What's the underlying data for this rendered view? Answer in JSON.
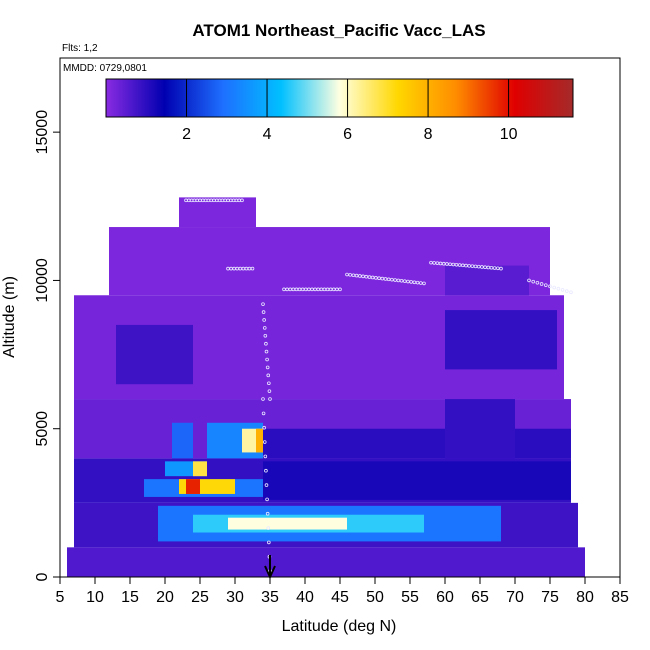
{
  "chart_data": {
    "type": "heatmap",
    "title": "ATOM1 Northeast_Pacific Vacc_LAS",
    "flights_label": "Flts: 1,2",
    "dates_label": "MMDD: 0729,0801",
    "xlabel": "Latitude (deg N)",
    "ylabel": "Altitude (m)",
    "xlim": [
      5,
      85
    ],
    "ylim": [
      0,
      17500
    ],
    "xticks": [
      "5",
      "10",
      "15",
      "20",
      "25",
      "30",
      "35",
      "40",
      "45",
      "50",
      "55",
      "60",
      "65",
      "70",
      "75",
      "80",
      "85"
    ],
    "yticks": [
      "0",
      "5000",
      "10000",
      "15000"
    ],
    "colorbar": {
      "range": [
        0,
        11.6
      ],
      "ticks": [
        "2",
        "4",
        "6",
        "8",
        "10"
      ],
      "placement": "top inside plot",
      "colors": [
        "#8a2be2",
        "#0000b0",
        "#1e6fff",
        "#00c0ff",
        "#ffffe0",
        "#ffd700",
        "#ff8c00",
        "#e00000",
        "#a52a2a"
      ]
    },
    "cells": [
      {
        "lat": [
          6,
          80
        ],
        "alt": [
          0,
          1000
        ],
        "v": 0.6
      },
      {
        "lat": [
          7,
          79
        ],
        "alt": [
          1000,
          2500
        ],
        "v": 0.8
      },
      {
        "lat": [
          19,
          68
        ],
        "alt": [
          1200,
          2400
        ],
        "v": 3.0
      },
      {
        "lat": [
          24,
          57
        ],
        "alt": [
          1500,
          2100
        ],
        "v": 4.6
      },
      {
        "lat": [
          29,
          46
        ],
        "alt": [
          1600,
          2000
        ],
        "v": 5.8
      },
      {
        "lat": [
          7,
          78
        ],
        "alt": [
          2500,
          4000
        ],
        "v": 0.9
      },
      {
        "lat": [
          17,
          34
        ],
        "alt": [
          2700,
          3300
        ],
        "v": 3.0
      },
      {
        "lat": [
          22,
          30
        ],
        "alt": [
          2800,
          3300
        ],
        "v": 7.2
      },
      {
        "lat": [
          23,
          25
        ],
        "alt": [
          2800,
          3300
        ],
        "v": 9.8
      },
      {
        "lat": [
          34,
          78
        ],
        "alt": [
          2600,
          3900
        ],
        "v": 1.2
      },
      {
        "lat": [
          20,
          26
        ],
        "alt": [
          3400,
          3900
        ],
        "v": 3.6
      },
      {
        "lat": [
          24,
          26
        ],
        "alt": [
          3400,
          3900
        ],
        "v": 6.8
      },
      {
        "lat": [
          7,
          78
        ],
        "alt": [
          4000,
          6000
        ],
        "v": 0.35
      },
      {
        "lat": [
          21,
          24
        ],
        "alt": [
          4000,
          5200
        ],
        "v": 2.8
      },
      {
        "lat": [
          26,
          34
        ],
        "alt": [
          4000,
          5200
        ],
        "v": 3.3
      },
      {
        "lat": [
          31,
          34
        ],
        "alt": [
          4200,
          5000
        ],
        "v": 6.2
      },
      {
        "lat": [
          33,
          34
        ],
        "alt": [
          4200,
          5000
        ],
        "v": 8.0
      },
      {
        "lat": [
          34,
          78
        ],
        "alt": [
          4000,
          5000
        ],
        "v": 1.0
      },
      {
        "lat": [
          60,
          70
        ],
        "alt": [
          4000,
          6000
        ],
        "v": 0.9
      },
      {
        "lat": [
          7,
          77
        ],
        "alt": [
          6000,
          9500
        ],
        "v": 0.2
      },
      {
        "lat": [
          13,
          24
        ],
        "alt": [
          6500,
          8500
        ],
        "v": 0.8
      },
      {
        "lat": [
          60,
          76
        ],
        "alt": [
          7000,
          9000
        ],
        "v": 0.9
      },
      {
        "lat": [
          12,
          75
        ],
        "alt": [
          9500,
          11800
        ],
        "v": 0.15
      },
      {
        "lat": [
          60,
          72
        ],
        "alt": [
          9500,
          10500
        ],
        "v": 0.5
      },
      {
        "lat": [
          22,
          33
        ],
        "alt": [
          11800,
          12800
        ],
        "v": 0.15
      }
    ],
    "arrow_lat": 35
  }
}
